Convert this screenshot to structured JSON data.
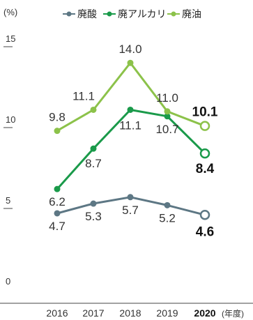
{
  "chart_data": {
    "type": "line",
    "unit_label": "(%)",
    "x_unit_label": "(年度)",
    "categories": [
      "2016",
      "2017",
      "2018",
      "2019",
      "2020"
    ],
    "ylim": [
      0,
      15
    ],
    "yticks": [
      0,
      5,
      10,
      15
    ],
    "grid": false,
    "legend_placement": "top",
    "highlight_last": true,
    "series": [
      {
        "name": "廃酸",
        "values": [
          4.7,
          5.3,
          5.7,
          5.2,
          4.6
        ],
        "labels": [
          "4.7",
          "5.3",
          "5.7",
          "5.2",
          "4.6"
        ],
        "color": "#5d7784"
      },
      {
        "name": "廃アルカリ",
        "values": [
          6.2,
          8.7,
          11.1,
          10.7,
          8.4
        ],
        "labels": [
          "6.2",
          "8.7",
          "11.1",
          "10.7",
          "8.4"
        ],
        "color": "#1a9a4a"
      },
      {
        "name": "廃油",
        "values": [
          9.8,
          11.1,
          14.0,
          11.0,
          10.1
        ],
        "labels": [
          "9.8",
          "11.1",
          "14.0",
          "11.0",
          "10.1"
        ],
        "color": "#8cc24a"
      }
    ]
  }
}
